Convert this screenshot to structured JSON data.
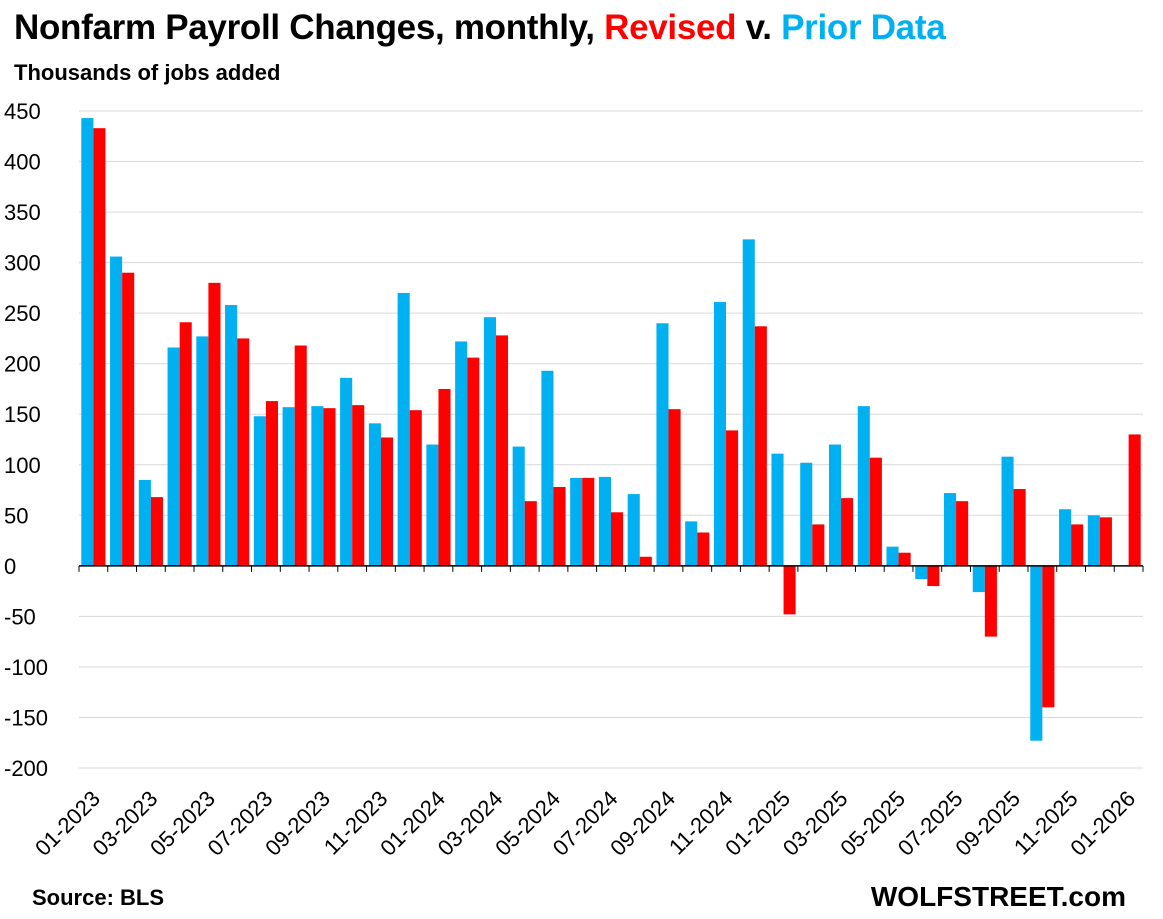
{
  "title": {
    "prefix": "Nonfarm Payroll Changes, monthly, ",
    "revised": "Revised",
    "middle": " v. ",
    "prior": "Prior Data"
  },
  "subtitle": "Thousands of jobs added",
  "source": "Source: BLS",
  "brand": "WOLFSTREET.com",
  "colors": {
    "prior": "#00B0F0",
    "revised": "#FF0000",
    "grid": "#d9d9d9",
    "axis": "#000000"
  },
  "chart_data": {
    "type": "bar",
    "title": "Nonfarm Payroll Changes, monthly, Revised v. Prior Data",
    "xlabel": "",
    "ylabel": "Thousands of jobs added",
    "ylim": [
      -200,
      450
    ],
    "yticks": [
      450,
      400,
      350,
      300,
      250,
      200,
      150,
      100,
      50,
      0,
      -50,
      -100,
      -150,
      -200
    ],
    "grid": true,
    "categories": [
      "01-2023",
      "02-2023",
      "03-2023",
      "04-2023",
      "05-2023",
      "06-2023",
      "07-2023",
      "08-2023",
      "09-2023",
      "10-2023",
      "11-2023",
      "12-2023",
      "01-2024",
      "02-2024",
      "03-2024",
      "04-2024",
      "05-2024",
      "06-2024",
      "07-2024",
      "08-2024",
      "09-2024",
      "10-2024",
      "11-2024",
      "12-2024",
      "01-2025",
      "02-2025",
      "03-2025",
      "04-2025",
      "05-2025",
      "06-2025",
      "07-2025",
      "08-2025",
      "09-2025",
      "10-2025",
      "11-2025",
      "12-2025",
      "01-2026"
    ],
    "xtick_labels": [
      "01-2023",
      "03-2023",
      "05-2023",
      "07-2023",
      "09-2023",
      "11-2023",
      "01-2024",
      "03-2024",
      "05-2024",
      "07-2024",
      "09-2024",
      "11-2024",
      "01-2025",
      "03-2025",
      "05-2025",
      "07-2025",
      "09-2025",
      "11-2025",
      "01-2026"
    ],
    "series": [
      {
        "name": "Prior Data",
        "values": [
          443,
          306,
          85,
          216,
          227,
          258,
          148,
          157,
          158,
          186,
          141,
          270,
          120,
          222,
          246,
          118,
          193,
          87,
          88,
          71,
          240,
          44,
          261,
          323,
          111,
          102,
          120,
          158,
          19,
          -13,
          72,
          -26,
          108,
          -173,
          56,
          50,
          null
        ]
      },
      {
        "name": "Revised",
        "values": [
          433,
          290,
          68,
          241,
          280,
          225,
          163,
          218,
          156,
          159,
          127,
          154,
          175,
          206,
          228,
          64,
          78,
          87,
          53,
          9,
          155,
          33,
          134,
          237,
          -48,
          41,
          67,
          107,
          13,
          -20,
          64,
          -70,
          76,
          -140,
          41,
          48,
          130
        ]
      }
    ]
  }
}
